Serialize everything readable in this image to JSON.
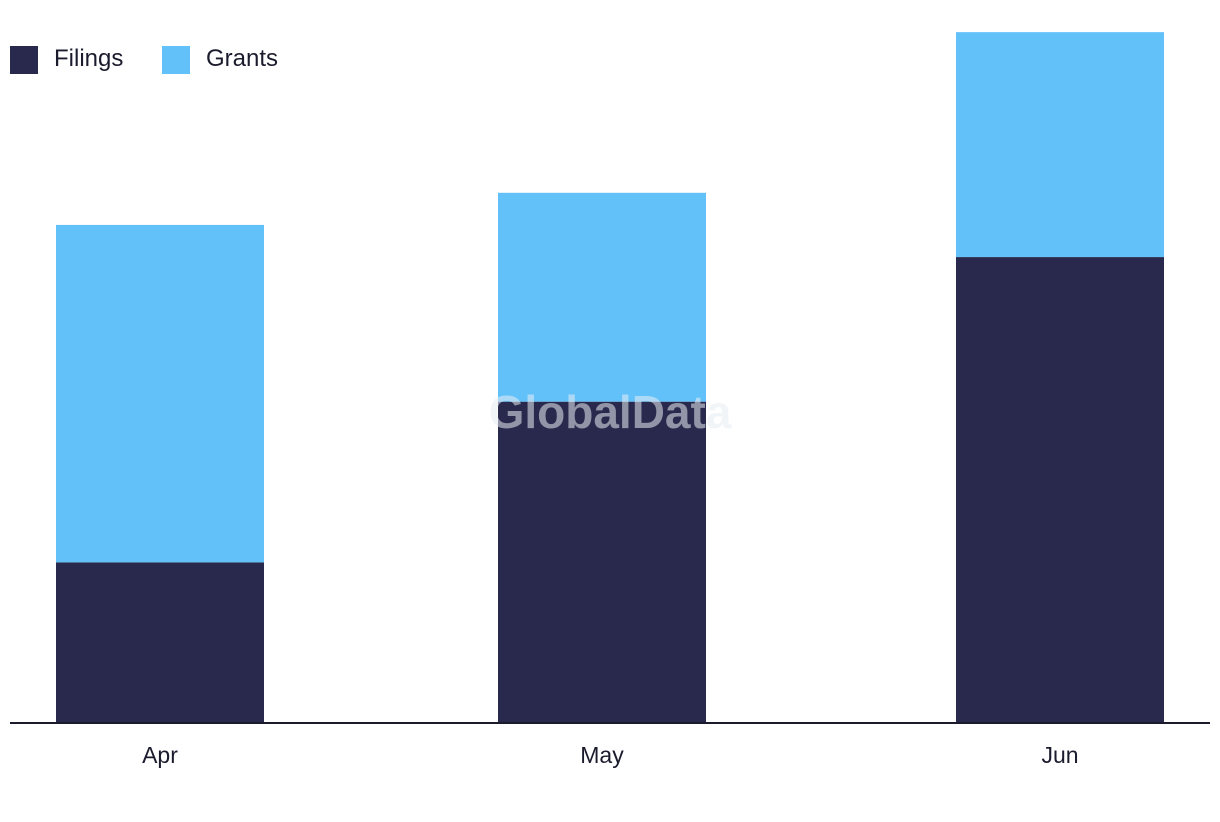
{
  "chart_data": {
    "type": "bar",
    "stacked": true,
    "categories": [
      "Apr",
      "May",
      "Jun"
    ],
    "series": [
      {
        "name": "Filings",
        "values": [
          5,
          10,
          14.5
        ],
        "color": "#28294c"
      },
      {
        "name": "Grants",
        "values": [
          10.5,
          6.5,
          7
        ],
        "color": "#62c1f9"
      }
    ],
    "ylim": [
      0,
      22.5
    ],
    "grid": false,
    "legend_position": "top-left",
    "axis_color": "#1b1b2e"
  },
  "watermark": "GlobalData"
}
